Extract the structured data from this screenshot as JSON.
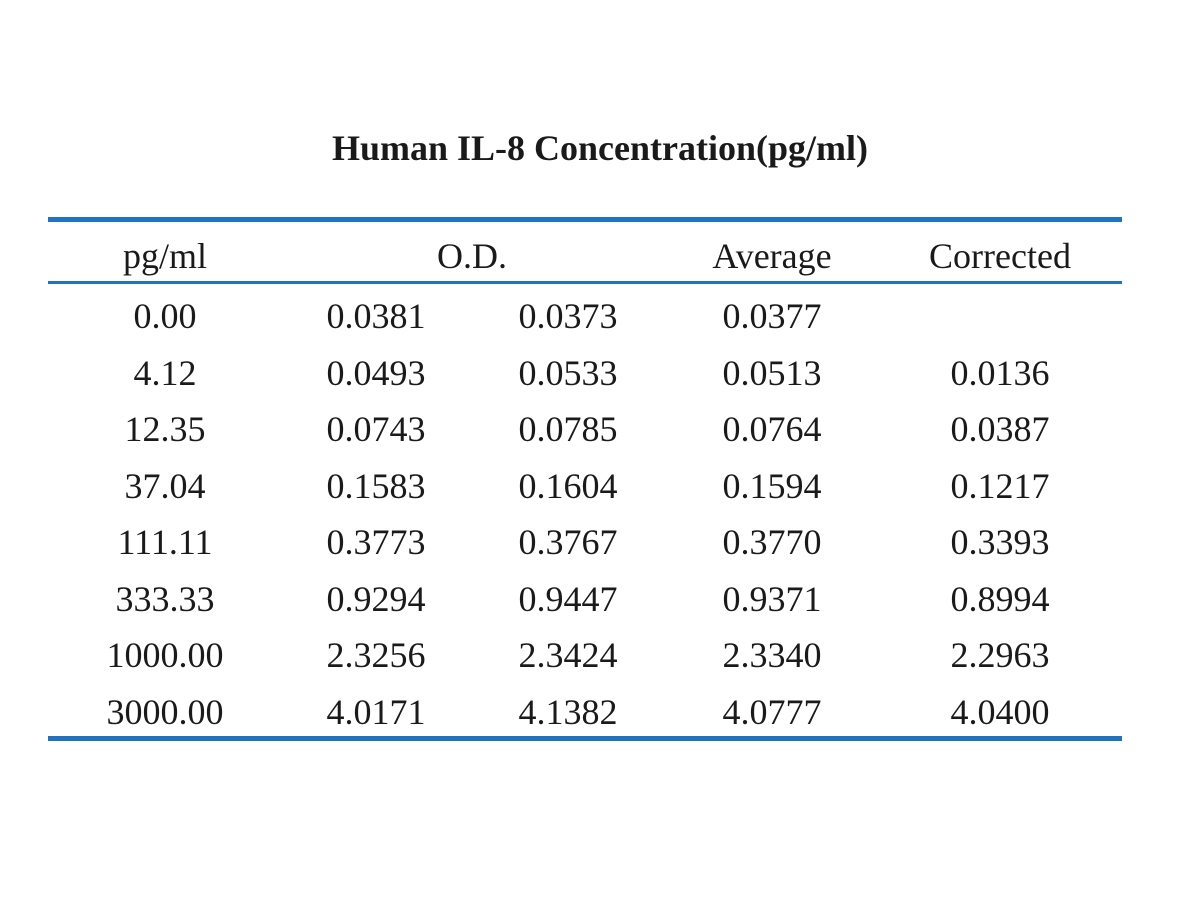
{
  "chart_data": {
    "type": "table",
    "title": "Human IL-8 Concentration(pg/ml)",
    "columns": [
      "pg/ml",
      "O.D.",
      "Average",
      "Corrected"
    ],
    "rows": [
      {
        "conc": "0.00",
        "od1": "0.0381",
        "od2": "0.0373",
        "avg": "0.0377",
        "corrected": ""
      },
      {
        "conc": "4.12",
        "od1": "0.0493",
        "od2": "0.0533",
        "avg": "0.0513",
        "corrected": "0.0136"
      },
      {
        "conc": "12.35",
        "od1": "0.0743",
        "od2": "0.0785",
        "avg": "0.0764",
        "corrected": "0.0387"
      },
      {
        "conc": "37.04",
        "od1": "0.1583",
        "od2": "0.1604",
        "avg": "0.1594",
        "corrected": "0.1217"
      },
      {
        "conc": "111.11",
        "od1": "0.3773",
        "od2": "0.3767",
        "avg": "0.3770",
        "corrected": "0.3393"
      },
      {
        "conc": "333.33",
        "od1": "0.9294",
        "od2": "0.9447",
        "avg": "0.9371",
        "corrected": "0.8994"
      },
      {
        "conc": "1000.00",
        "od1": "2.3256",
        "od2": "2.3424",
        "avg": "2.3340",
        "corrected": "2.2963"
      },
      {
        "conc": "3000.00",
        "od1": "4.0171",
        "od2": "4.1382",
        "avg": "4.0777",
        "corrected": "4.0400"
      }
    ],
    "rule_color": "#1f73c1"
  }
}
